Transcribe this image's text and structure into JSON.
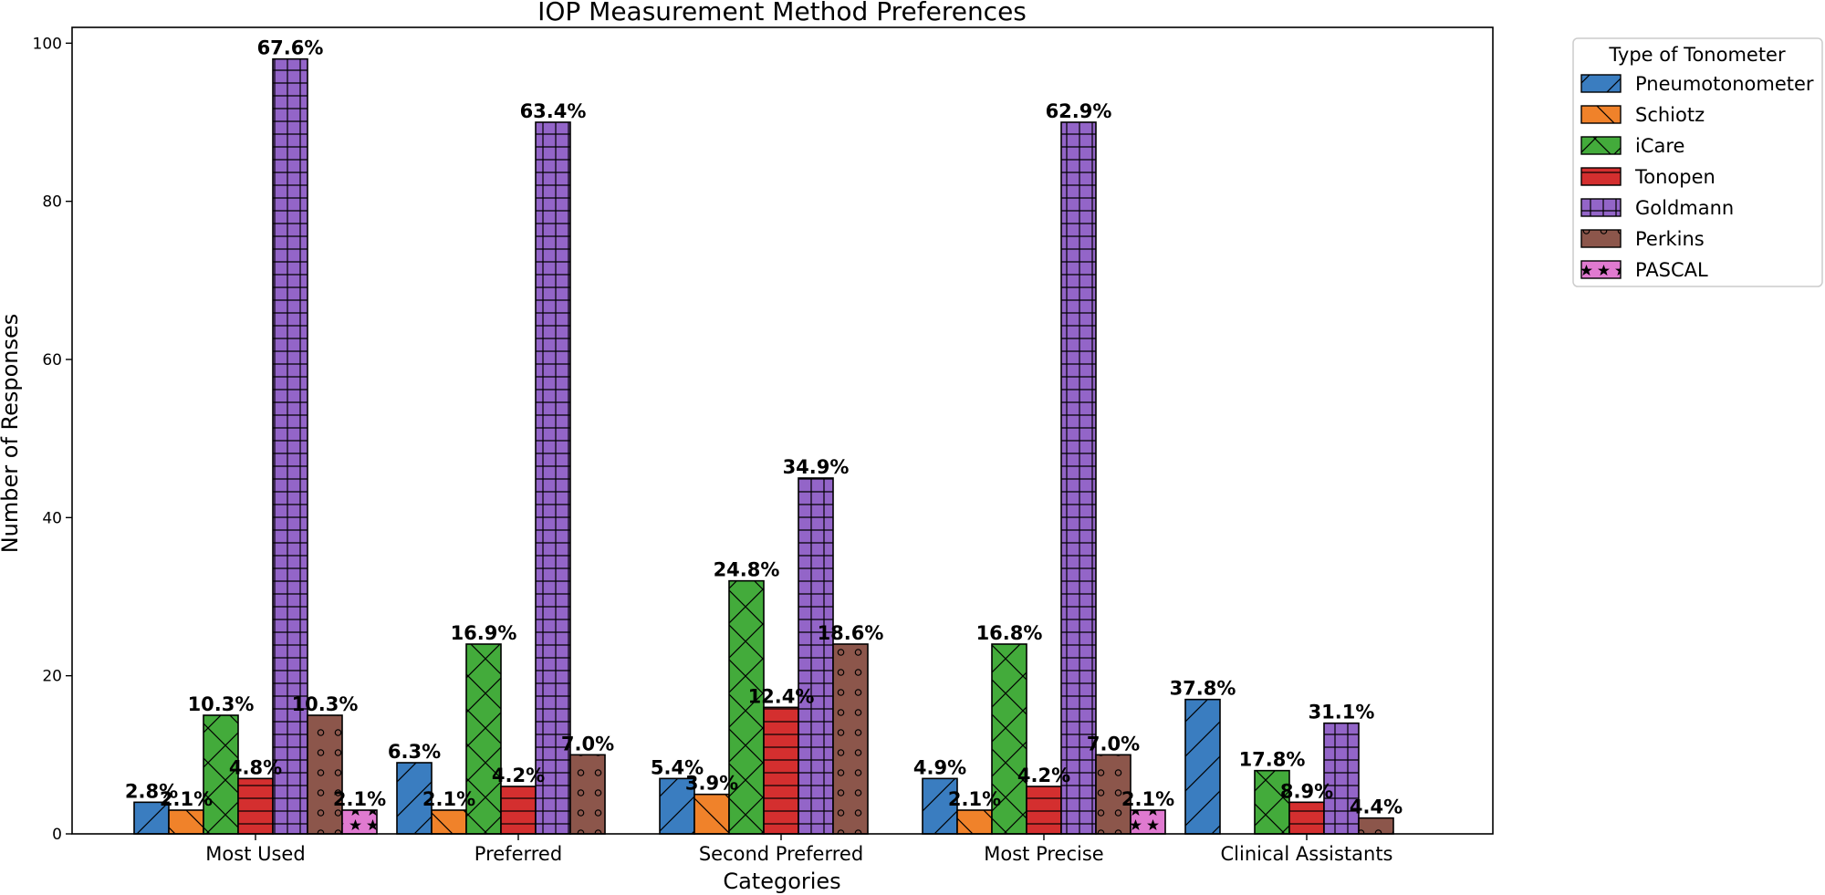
{
  "chart_data": {
    "type": "bar",
    "title": "IOP Measurement Method Preferences",
    "xlabel": "Categories",
    "ylabel": "Number of Responses",
    "ylim": [
      0,
      102
    ],
    "yticks": [
      0,
      20,
      40,
      60,
      80,
      100
    ],
    "categories": [
      "Most Used",
      "Preferred",
      "Second Preferred",
      "Most Precise",
      "Clinical Assistants"
    ],
    "legend": {
      "title": "Type of Tonometer",
      "placement": "outside-top-right"
    },
    "grid": false,
    "series": [
      {
        "name": "Pneumotonometer",
        "color": "#3a7dc0",
        "hatch": "slash",
        "values": [
          4,
          9,
          7,
          7,
          17
        ],
        "labels": [
          "2.8%",
          "6.3%",
          "5.4%",
          "4.9%",
          "37.8%"
        ]
      },
      {
        "name": "Schiotz",
        "color": "#f0822a",
        "hatch": "backslash",
        "values": [
          3,
          3,
          5,
          3,
          0
        ],
        "labels": [
          "2.1%",
          "2.1%",
          "3.9%",
          "2.1%",
          ""
        ]
      },
      {
        "name": "iCare",
        "color": "#43ab3b",
        "hatch": "cross",
        "values": [
          15,
          24,
          32,
          24,
          8
        ],
        "labels": [
          "10.3%",
          "16.9%",
          "24.8%",
          "16.8%",
          "17.8%"
        ]
      },
      {
        "name": "Tonopen",
        "color": "#d42f2f",
        "hatch": "horizontal",
        "values": [
          7,
          6,
          16,
          6,
          4
        ],
        "labels": [
          "4.8%",
          "4.2%",
          "12.4%",
          "4.2%",
          "8.9%"
        ]
      },
      {
        "name": "Goldmann",
        "color": "#9365c8",
        "hatch": "grid",
        "values": [
          98,
          90,
          45,
          90,
          14
        ],
        "labels": [
          "67.6%",
          "63.4%",
          "34.9%",
          "62.9%",
          "31.1%"
        ]
      },
      {
        "name": "Perkins",
        "color": "#8c564b",
        "hatch": "circles",
        "values": [
          15,
          10,
          24,
          10,
          2
        ],
        "labels": [
          "10.3%",
          "7.0%",
          "18.6%",
          "7.0%",
          "4.4%"
        ]
      },
      {
        "name": "PASCAL",
        "color": "#e07ad0",
        "hatch": "stars",
        "values": [
          3,
          0,
          0,
          3,
          0
        ],
        "labels": [
          "2.1%",
          "",
          "",
          "2.1%",
          ""
        ]
      }
    ]
  }
}
